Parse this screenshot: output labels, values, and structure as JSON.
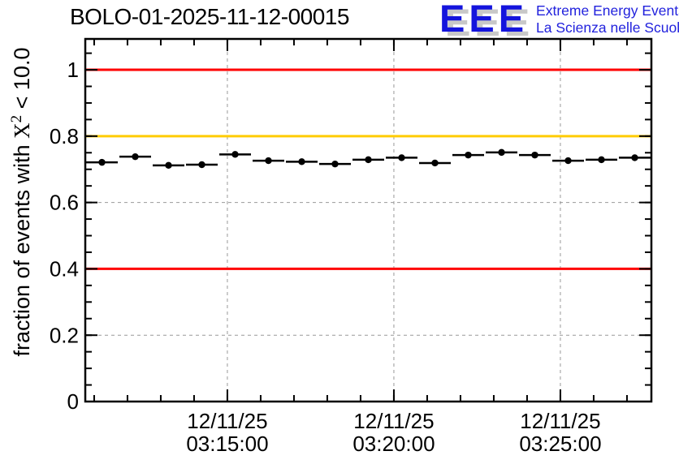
{
  "logo": {
    "letters": "EEE",
    "line1": "Extreme Energy Events",
    "line2": "La Scienza nelle Scuole",
    "letters_color": "#1414dd",
    "text_color": "#2222dd",
    "shadow_color": "#c8c8c8"
  },
  "chart_data": {
    "type": "scatter",
    "title": "BOLO-01-2025-11-12-00015",
    "ylabel": "fraction of events with X^2 < 10.0",
    "ylabel_parts": {
      "prefix": "fraction of events with ",
      "x": "X",
      "sup": "2",
      "suffix": " < 10.0"
    },
    "ylim": [
      0,
      1.093
    ],
    "y_major_ticks": [
      {
        "v": 0.0,
        "label": "0"
      },
      {
        "v": 0.2,
        "label": "0.2"
      },
      {
        "v": 0.4,
        "label": "0.4"
      },
      {
        "v": 0.6,
        "label": "0.6"
      },
      {
        "v": 0.8,
        "label": "0.8"
      },
      {
        "v": 1.0,
        "label": "1"
      }
    ],
    "y_minor_step": 0.05,
    "x_span_minutes": 17,
    "x_tick_offset_min": 0.267,
    "x_minor_step_min": 1,
    "x_major_ticks": [
      {
        "t": 4.267,
        "date": "12/11/25",
        "time": "03:15:00"
      },
      {
        "t": 9.267,
        "date": "12/11/25",
        "time": "03:20:00"
      },
      {
        "t": 14.267,
        "date": "12/11/25",
        "time": "03:25:00"
      }
    ],
    "bin_width_min": 1,
    "values": [
      0.721,
      0.738,
      0.712,
      0.714,
      0.745,
      0.726,
      0.723,
      0.716,
      0.729,
      0.735,
      0.719,
      0.743,
      0.751,
      0.743,
      0.726,
      0.729,
      0.735
    ],
    "reference_lines": [
      {
        "v": 1.0,
        "color": "#ff0000"
      },
      {
        "v": 0.8,
        "color": "#ffcc00"
      },
      {
        "v": 0.4,
        "color": "#ff0000"
      }
    ],
    "grid": {
      "show": true,
      "dash": "4 4",
      "color": "#999999"
    },
    "colors": {
      "marker": "#000000",
      "frame": "#000000"
    }
  }
}
